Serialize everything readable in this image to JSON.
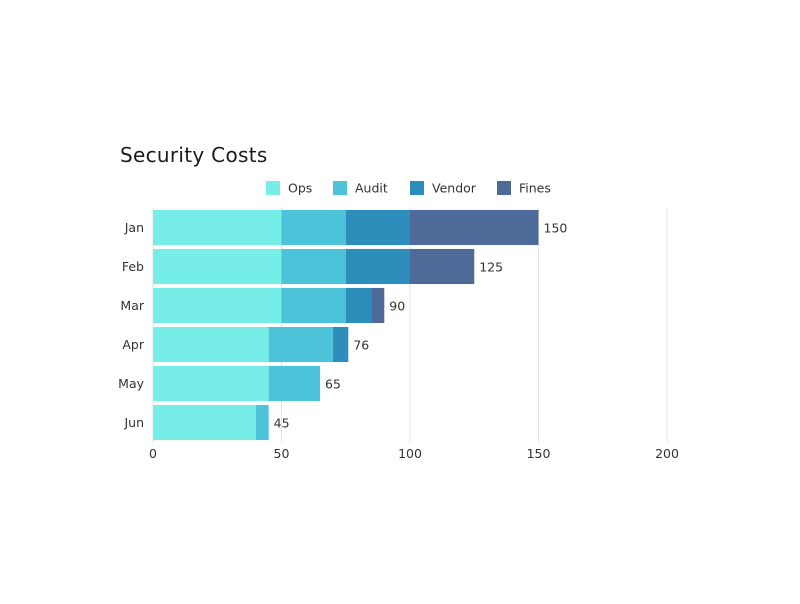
{
  "chart_data": {
    "type": "bar",
    "orientation": "horizontal",
    "stacked": true,
    "title": "Security Costs",
    "xlabel": "",
    "ylabel": "",
    "categories": [
      "Jan",
      "Feb",
      "Mar",
      "Apr",
      "May",
      "Jun"
    ],
    "series": [
      {
        "name": "Ops",
        "color": "#76EDE6",
        "values": [
          50,
          50,
          50,
          45,
          45,
          40
        ]
      },
      {
        "name": "Audit",
        "color": "#4CC3D9",
        "values": [
          25,
          25,
          25,
          25,
          20,
          5
        ]
      },
      {
        "name": "Vendor",
        "color": "#2D8DBB",
        "values": [
          25,
          25,
          10,
          6,
          0,
          0
        ]
      },
      {
        "name": "Fines",
        "color": "#4E6A98",
        "values": [
          50,
          25,
          5,
          0,
          0,
          0
        ]
      }
    ],
    "totals": [
      150,
      125,
      90,
      76,
      65,
      45
    ],
    "xlim": [
      0,
      200
    ],
    "xticks": [
      0,
      50,
      100,
      150,
      200
    ],
    "grid": true,
    "legend_position": "top-center"
  }
}
